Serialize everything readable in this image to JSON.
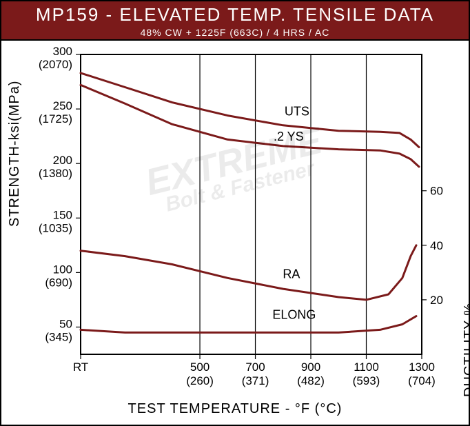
{
  "header": {
    "title": "MP159 - ELEVATED TEMP. TENSILE DATA",
    "subtitle": "48% CW + 1225F (663C) / 4 HRS / AC"
  },
  "watermark": {
    "line1": "EXTREME",
    "line2": "Bolt & Fastener"
  },
  "axes": {
    "x": {
      "label": "TEST TEMPERATURE - °F (°C)",
      "domainF": [
        70,
        1300
      ],
      "ticks": [
        {
          "f": "RT",
          "c": "",
          "value": 70
        },
        {
          "f": "500",
          "c": "(260)",
          "value": 500
        },
        {
          "f": "700",
          "c": "(371)",
          "value": 700
        },
        {
          "f": "900",
          "c": "(482)",
          "value": 900
        },
        {
          "f": "1100",
          "c": "(593)",
          "value": 1100
        },
        {
          "f": "1300",
          "c": "(704)",
          "value": 1300
        }
      ],
      "pixel_range": [
        115,
        610
      ]
    },
    "yLeft": {
      "label": "STRENGTH-ksi(MPa)",
      "domain": [
        25,
        300
      ],
      "ticks": [
        {
          "ksi": "300",
          "mpa": "(2070)",
          "value": 300
        },
        {
          "ksi": "250",
          "mpa": "(1725)",
          "value": 250
        },
        {
          "ksi": "200",
          "mpa": "(1380)",
          "value": 200
        },
        {
          "ksi": "150",
          "mpa": "(1035)",
          "value": 150
        },
        {
          "ksi": "100",
          "mpa": "(690)",
          "value": 100
        },
        {
          "ksi": "50",
          "mpa": "(345)",
          "value": 50
        }
      ],
      "pixel_range": [
        20,
        455
      ]
    },
    "yRight": {
      "label": "DUCTILITY-%",
      "domain": [
        0,
        110
      ],
      "ticks": [
        {
          "pct": "60",
          "value": 60
        },
        {
          "pct": "40",
          "value": 40
        },
        {
          "pct": "20",
          "value": 20
        }
      ]
    }
  },
  "styling": {
    "header_bg": "#7b1a1a",
    "header_fg": "#ffffff",
    "plot_bg": "#ffffff",
    "axis_color": "#000000",
    "grid_color": "#000000",
    "series_color": "#7b1a1a",
    "line_width": 3,
    "axis_width": 2,
    "label_color": "#000000",
    "font_family": "Arial",
    "tick_fontsize": 17,
    "series_label_fontsize": 18
  },
  "break_mark_x": 230,
  "series": {
    "UTS": {
      "label": "UTS",
      "label_at": {
        "xF": 850,
        "yKsi": 244
      },
      "axis": "left",
      "points": [
        {
          "xF": 70,
          "y": 283
        },
        {
          "xF": 230,
          "y": 270
        },
        {
          "xF": 400,
          "y": 256
        },
        {
          "xF": 600,
          "y": 244
        },
        {
          "xF": 800,
          "y": 235
        },
        {
          "xF": 1000,
          "y": 230
        },
        {
          "xF": 1150,
          "y": 229
        },
        {
          "xF": 1220,
          "y": 228
        },
        {
          "xF": 1260,
          "y": 222
        },
        {
          "xF": 1290,
          "y": 215
        }
      ]
    },
    "YS": {
      "label": ".2 YS",
      "label_at": {
        "xF": 820,
        "yKsi": 221
      },
      "axis": "left",
      "points": [
        {
          "xF": 70,
          "y": 272
        },
        {
          "xF": 230,
          "y": 255
        },
        {
          "xF": 400,
          "y": 236
        },
        {
          "xF": 600,
          "y": 222
        },
        {
          "xF": 800,
          "y": 216
        },
        {
          "xF": 1000,
          "y": 213
        },
        {
          "xF": 1150,
          "y": 212
        },
        {
          "xF": 1220,
          "y": 209
        },
        {
          "xF": 1260,
          "y": 204
        },
        {
          "xF": 1290,
          "y": 197
        }
      ]
    },
    "RA": {
      "label": "RA",
      "label_at": {
        "xF": 830,
        "yPct": 28
      },
      "axis": "right",
      "points": [
        {
          "xF": 70,
          "y": 38
        },
        {
          "xF": 230,
          "y": 36
        },
        {
          "xF": 400,
          "y": 33
        },
        {
          "xF": 600,
          "y": 28
        },
        {
          "xF": 800,
          "y": 24
        },
        {
          "xF": 1000,
          "y": 21
        },
        {
          "xF": 1100,
          "y": 20
        },
        {
          "xF": 1180,
          "y": 22
        },
        {
          "xF": 1230,
          "y": 28
        },
        {
          "xF": 1260,
          "y": 36
        },
        {
          "xF": 1280,
          "y": 40
        }
      ]
    },
    "ELONG": {
      "label": "ELONG",
      "label_at": {
        "xF": 840,
        "yPct": 13
      },
      "axis": "right",
      "points": [
        {
          "xF": 70,
          "y": 9
        },
        {
          "xF": 230,
          "y": 8
        },
        {
          "xF": 500,
          "y": 8
        },
        {
          "xF": 800,
          "y": 8
        },
        {
          "xF": 1000,
          "y": 8
        },
        {
          "xF": 1150,
          "y": 9
        },
        {
          "xF": 1230,
          "y": 11
        },
        {
          "xF": 1280,
          "y": 14
        }
      ]
    }
  }
}
